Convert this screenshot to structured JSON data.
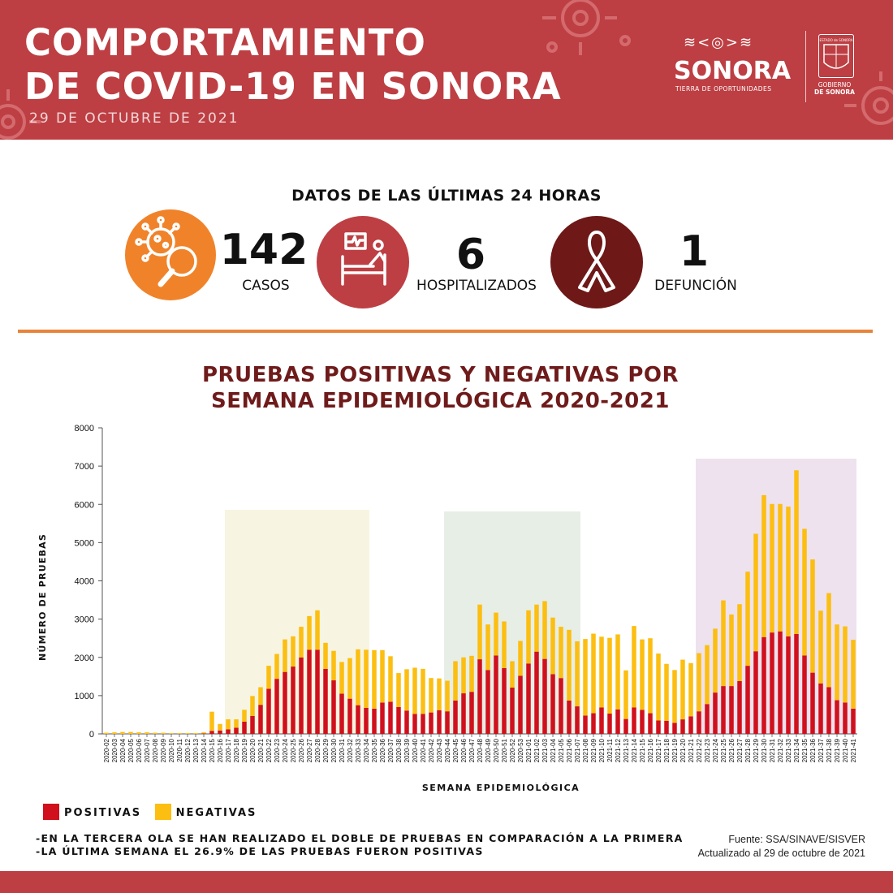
{
  "header": {
    "title_line1": "COMPORTAMIENTO",
    "title_line2": "DE COVID-19 EN SONORA",
    "date": "29 DE OCTUBRE DE 2021",
    "logo_pattern": "≋<◎>≋",
    "logo_name": "SONORA",
    "logo_tagline": "TIERRA DE OPORTUNIDADES",
    "gob_line1": "GOBIERNO",
    "gob_line2": "DE SONORA",
    "seal_text": "ESTADO de SONORA",
    "colors": {
      "header_bg": "#bd3f43"
    }
  },
  "stats": {
    "heading": "DATOS DE LAS ÚLTIMAS 24 HORAS",
    "items": [
      {
        "value": "142",
        "label": "CASOS",
        "icon": "virus-search-icon",
        "color": "#f0832a"
      },
      {
        "value": "6",
        "label": "HOSPITALIZADOS",
        "icon": "hospital-bed-icon",
        "color": "#bd3f43"
      },
      {
        "value": "1",
        "label": "DEFUNCIÓN",
        "icon": "ribbon-icon",
        "color": "#6e1818"
      }
    ]
  },
  "chart_title_line1": "PRUEBAS POSITIVAS Y NEGATIVAS POR",
  "chart_title_line2": "SEMANA EPIDEMIOLÓGICA 2020-2021",
  "chart_data": {
    "type": "bar",
    "stacked": true,
    "xlabel": "SEMANA EPIDEMIOLÓGICA",
    "ylabel": "NÚMERO DE PRUEBAS",
    "ylim": [
      0,
      8000
    ],
    "yticks": [
      0,
      1000,
      2000,
      3000,
      4000,
      5000,
      6000,
      7000,
      8000
    ],
    "categories": [
      "2020-02",
      "2020-03",
      "2020-04",
      "2020-05",
      "2020-06",
      "2020-07",
      "2020-08",
      "2020-09",
      "2020-10",
      "2020-11",
      "2020-12",
      "2020-13",
      "2020-14",
      "2020-15",
      "2020-16",
      "2020-17",
      "2020-18",
      "2020-19",
      "2020-20",
      "2020-21",
      "2020-22",
      "2020-23",
      "2020-24",
      "2020-25",
      "2020-26",
      "2020-27",
      "2020-28",
      "2020-29",
      "2020-30",
      "2020-31",
      "2020-32",
      "2020-33",
      "2020-34",
      "2020-35",
      "2020-36",
      "2020-37",
      "2020-38",
      "2020-39",
      "2020-40",
      "2020-41",
      "2020-42",
      "2020-43",
      "2020-44",
      "2020-45",
      "2020-46",
      "2020-47",
      "2020-48",
      "2020-49",
      "2020-50",
      "2020-51",
      "2020-52",
      "2020-53",
      "2021-01",
      "2021-02",
      "2021-03",
      "2021-04",
      "2021-05",
      "2021-06",
      "2021-07",
      "2021-08",
      "2021-09",
      "2021-10",
      "2021-11",
      "2021-12",
      "2021-13",
      "2021-14",
      "2021-15",
      "2021-16",
      "2021-17",
      "2021-18",
      "2021-19",
      "2021-20",
      "2021-21",
      "2021-22",
      "2021-23",
      "2021-24",
      "2021-25",
      "2021-26",
      "2021-27",
      "2021-28",
      "2021-29",
      "2021-30",
      "2021-31",
      "2021-32",
      "2021-33",
      "2021-34",
      "2021-35",
      "2021-36",
      "2021-37",
      "2021-38",
      "2021-39",
      "2021-40",
      "2021-41"
    ],
    "series": [
      {
        "name": "POSITIVAS",
        "color": "#d0101c",
        "values": [
          0,
          0,
          0,
          0,
          0,
          0,
          0,
          0,
          0,
          0,
          0,
          0,
          10,
          80,
          90,
          120,
          160,
          320,
          470,
          760,
          1180,
          1440,
          1620,
          1760,
          2000,
          2200,
          2200,
          1700,
          1400,
          1050,
          920,
          750,
          680,
          660,
          820,
          840,
          700,
          610,
          520,
          520,
          560,
          620,
          590,
          870,
          1060,
          1100,
          1950,
          1670,
          2050,
          1720,
          1210,
          1520,
          1840,
          2150,
          1960,
          1560,
          1460,
          870,
          720,
          480,
          540,
          690,
          530,
          640,
          390,
          690,
          630,
          540,
          350,
          340,
          290,
          380,
          460,
          590,
          780,
          1080,
          1250,
          1250,
          1380,
          1780,
          2160,
          2530,
          2650,
          2680,
          2550,
          2610,
          2050,
          1600,
          1320,
          1220,
          880,
          820,
          660
        ]
      },
      {
        "name": "NEGATIVAS",
        "color": "#fcbe10",
        "values": [
          30,
          40,
          50,
          50,
          40,
          40,
          30,
          30,
          20,
          20,
          20,
          20,
          30,
          500,
          170,
          260,
          220,
          310,
          520,
          460,
          600,
          650,
          850,
          790,
          800,
          880,
          1030,
          680,
          770,
          830,
          1060,
          1460,
          1520,
          1530,
          1370,
          1190,
          890,
          1080,
          1210,
          1180,
          900,
          830,
          800,
          1030,
          940,
          940,
          1430,
          1190,
          1120,
          1220,
          690,
          910,
          1390,
          1230,
          1510,
          1480,
          1340,
          1850,
          1700,
          2000,
          2080,
          1850,
          1980,
          1960,
          1270,
          2130,
          1840,
          1960,
          1750,
          1490,
          1380,
          1560,
          1390,
          1520,
          1540,
          1670,
          2240,
          1870,
          2010,
          2460,
          3070,
          3710,
          3360,
          3330,
          3390,
          4280,
          3310,
          2960,
          1900,
          2460,
          1980,
          1990,
          1800
        ]
      }
    ],
    "highlight_regions": [
      {
        "from": "2020-17",
        "to": "2020-34",
        "color": "#f7f5e1"
      },
      {
        "from": "2020-44",
        "to": "2021-07",
        "color": "#e7eee6"
      },
      {
        "from": "2021-22",
        "to": "2021-41",
        "color": "#ede2ee"
      }
    ],
    "legend": [
      {
        "label": "POSITIVAS",
        "color": "#d0101c"
      },
      {
        "label": "NEGATIVAS",
        "color": "#fcbe10"
      }
    ]
  },
  "notes": [
    "-EN LA TERCERA OLA SE HAN REALIZADO EL DOBLE DE PRUEBAS EN COMPARACIÓN A LA PRIMERA",
    "-LA ÚLTIMA SEMANA EL 26.9% DE LAS PRUEBAS FUERON POSITIVAS"
  ],
  "source": {
    "line1": "Fuente: SSA/SINAVE/SISVER",
    "line2": "Actualizado al 29 de octubre de 2021"
  }
}
